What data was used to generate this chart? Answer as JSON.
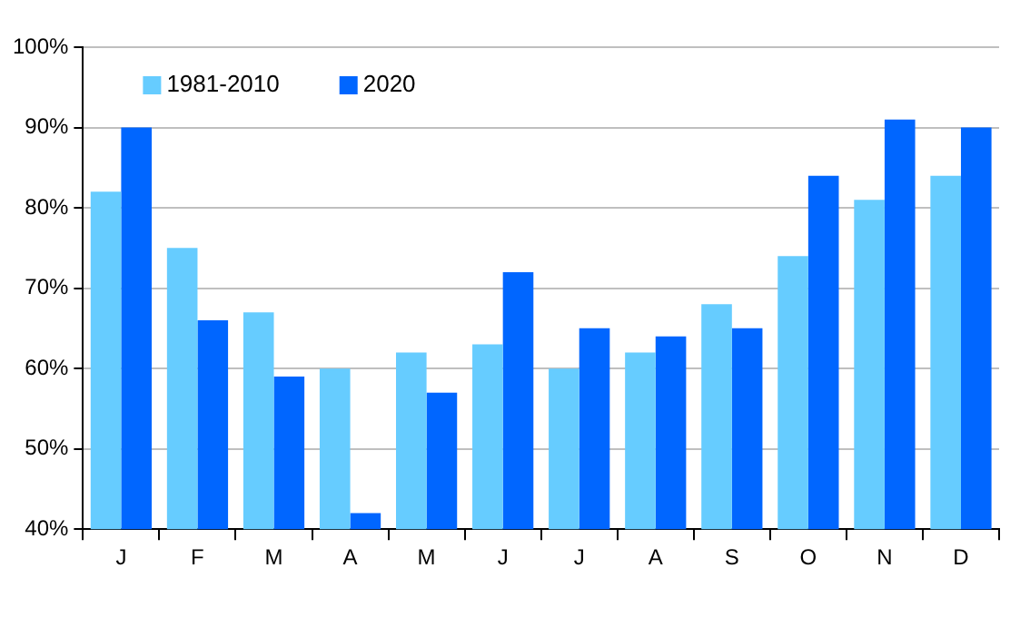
{
  "chart_data": {
    "type": "bar",
    "categories": [
      "J",
      "F",
      "M",
      "A",
      "M",
      "J",
      "J",
      "A",
      "S",
      "O",
      "N",
      "D"
    ],
    "series": [
      {
        "name": "1981-2010",
        "color": "#66ccff",
        "values": [
          82,
          75,
          67,
          60,
          62,
          63,
          60,
          62,
          68,
          74,
          81,
          84
        ]
      },
      {
        "name": "2020",
        "color": "#0066ff",
        "values": [
          90,
          66,
          59,
          42,
          57,
          72,
          65,
          64,
          65,
          84,
          91,
          90
        ]
      }
    ],
    "ylim": [
      40,
      100
    ],
    "yticks": [
      {
        "value": 40,
        "label": "40%"
      },
      {
        "value": 50,
        "label": "50%"
      },
      {
        "value": 60,
        "label": "60%"
      },
      {
        "value": 70,
        "label": "70%"
      },
      {
        "value": 80,
        "label": "80%"
      },
      {
        "value": 90,
        "label": "90%"
      },
      {
        "value": 100,
        "label": "100%"
      }
    ],
    "grid": "y",
    "legend": "top left"
  }
}
